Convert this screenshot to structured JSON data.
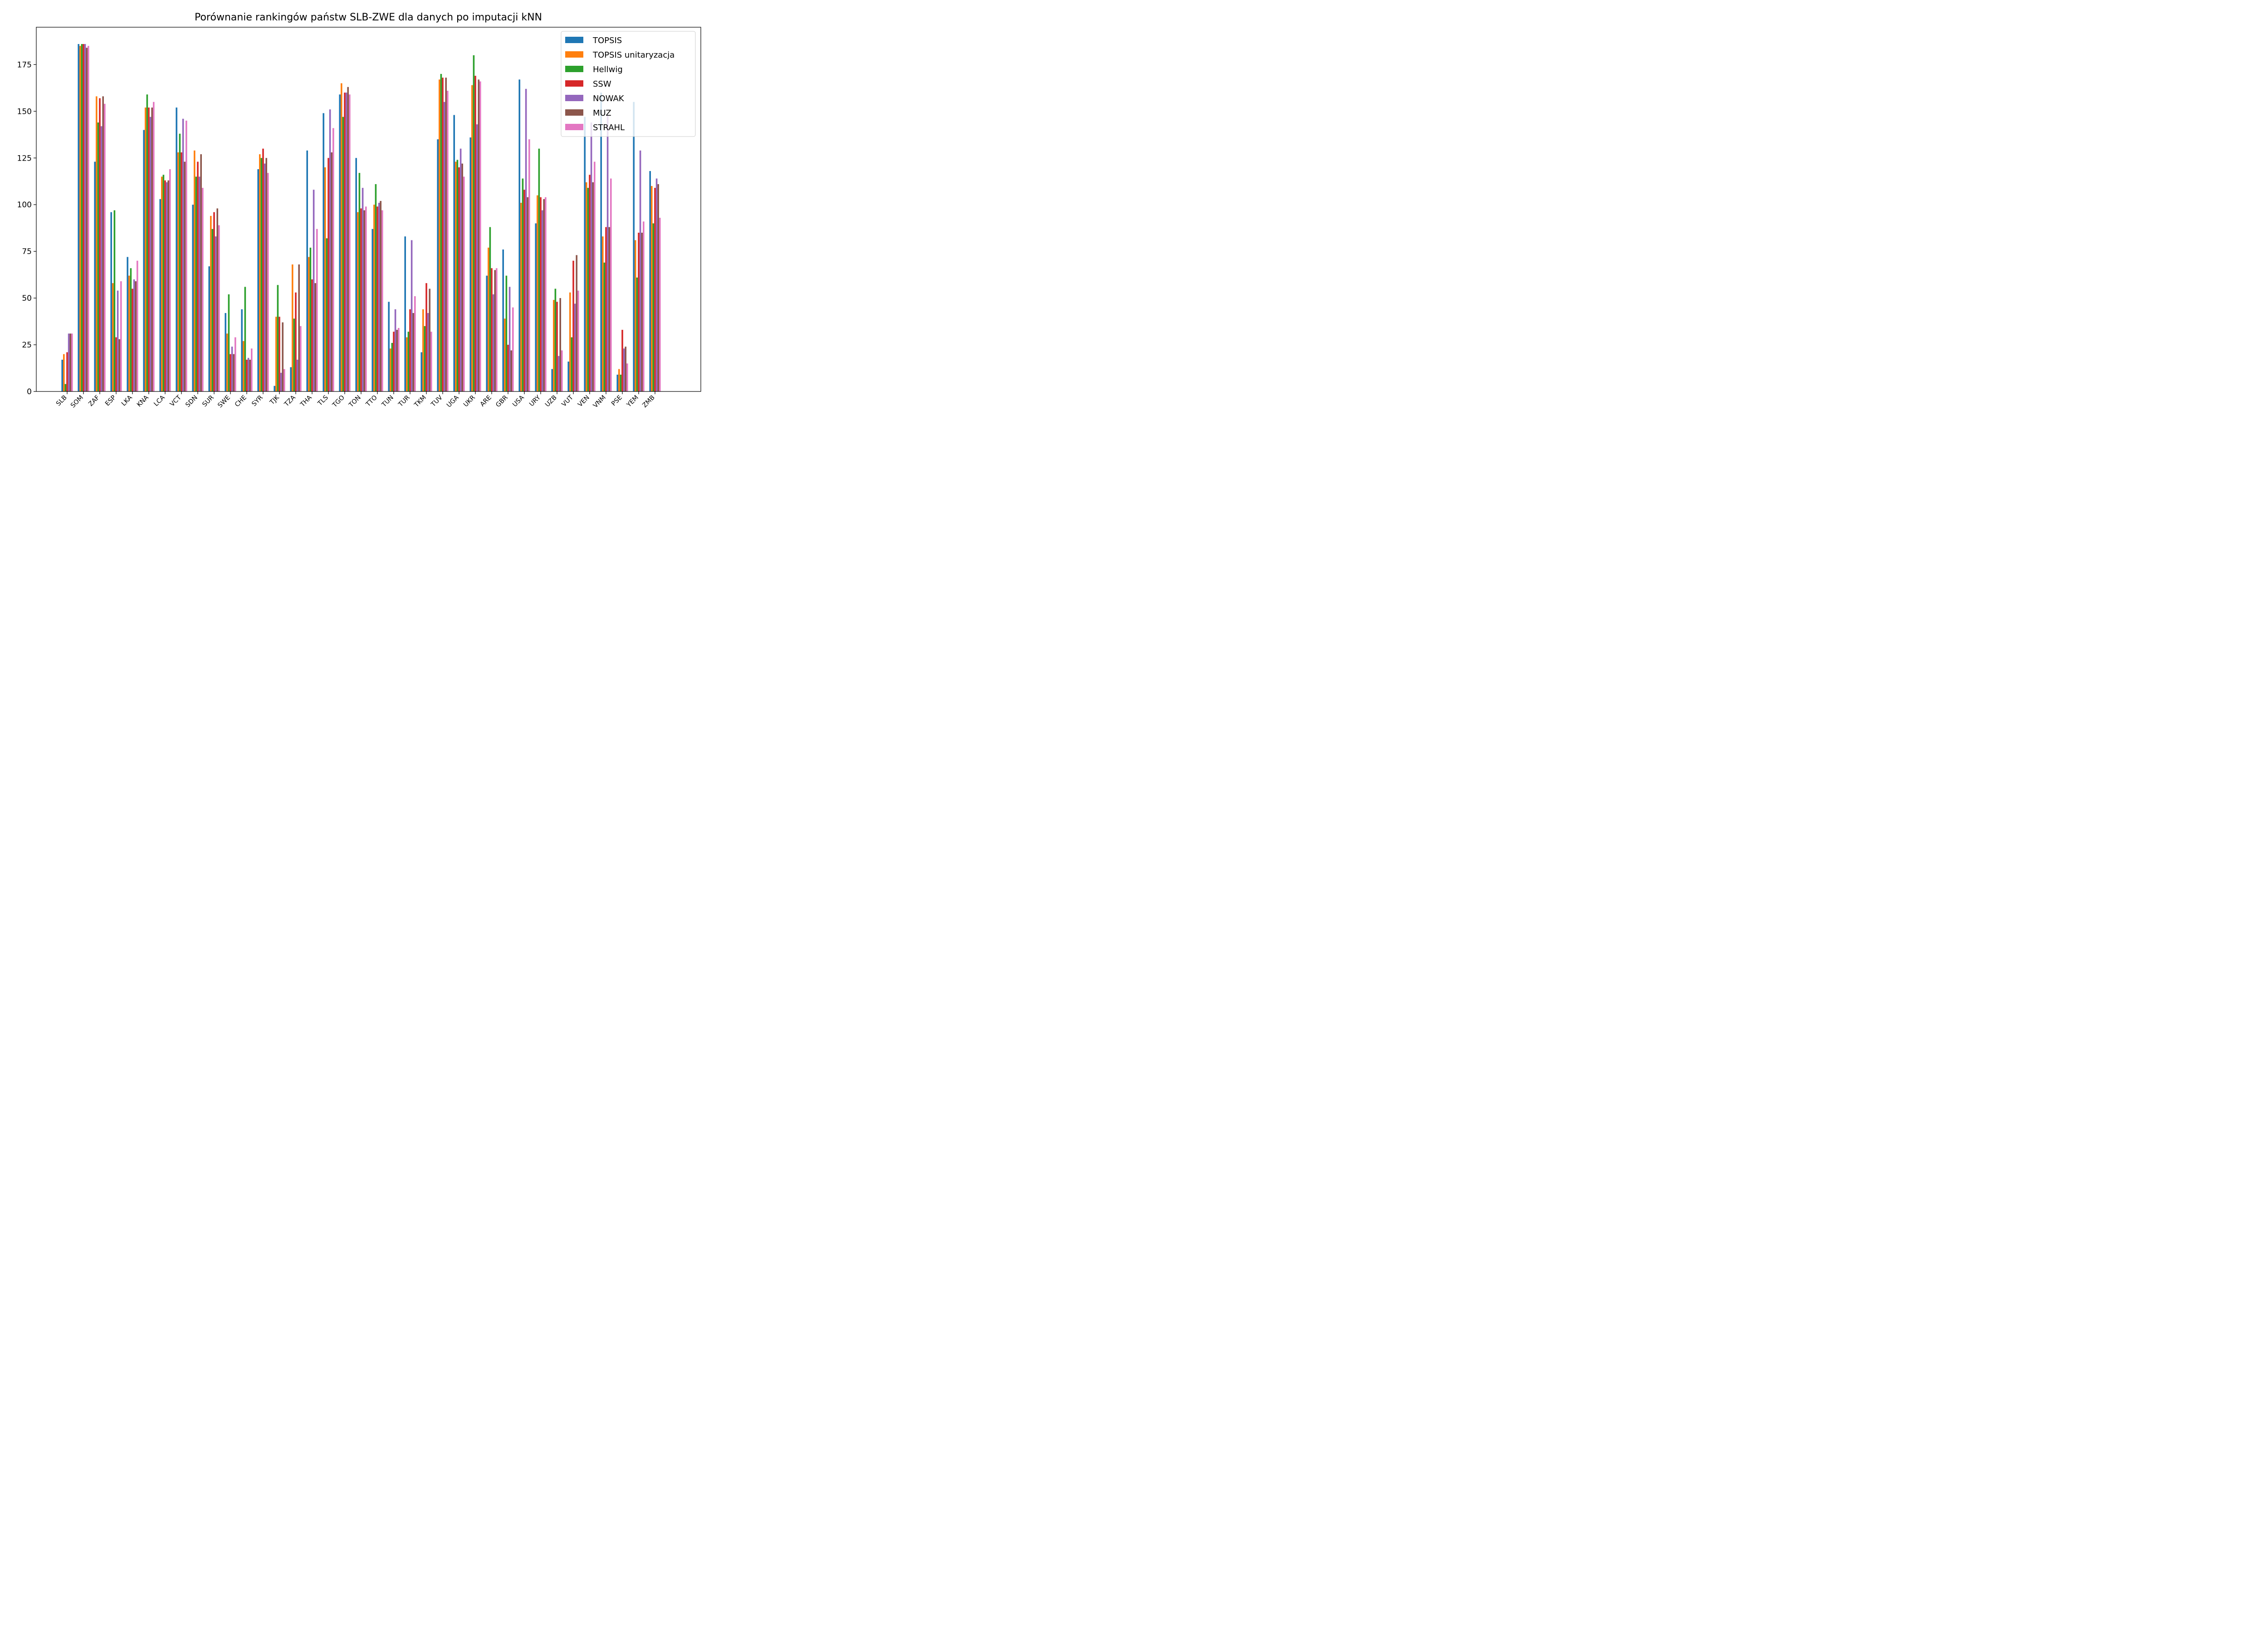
{
  "chart_data": {
    "type": "bar",
    "title": "Porównanie rankingów państw SLB-ZWE dla danych po imputacji kNN",
    "xlabel": "",
    "ylabel": "",
    "ylim": [
      0,
      195
    ],
    "yticks": [
      0,
      25,
      50,
      75,
      100,
      125,
      150,
      175
    ],
    "legend_position": "top-right",
    "grid": false,
    "categories": [
      "SLB",
      "SOM",
      "ZAF",
      "ESP",
      "LKA",
      "KNA",
      "LCA",
      "VCT",
      "SDN",
      "SUR",
      "SWE",
      "CHE",
      "SYR",
      "TJK",
      "TZA",
      "THA",
      "TLS",
      "TGO",
      "TON",
      "TTO",
      "TUN",
      "TUR",
      "TKM",
      "TUV",
      "UGA",
      "UKR",
      "ARE",
      "GBR",
      "USA",
      "URY",
      "UZB",
      "VUT",
      "VEN",
      "VNM",
      "PSE",
      "YEM",
      "ZMB"
    ],
    "series": [
      {
        "name": "TOPSIS",
        "color": "#1f77b4",
        "values": [
          17,
          186,
          123,
          96,
          72,
          140,
          103,
          152,
          100,
          67,
          42,
          44,
          119,
          3,
          13,
          129,
          149,
          159,
          125,
          87,
          48,
          83,
          21,
          135,
          148,
          136,
          62,
          76,
          167,
          90,
          12,
          16,
          147,
          160,
          9,
          155,
          118
        ]
      },
      {
        "name": "TOPSIS unitaryzacja",
        "color": "#ff7f0e",
        "values": [
          20,
          185,
          158,
          58,
          62,
          152,
          115,
          128,
          129,
          94,
          31,
          27,
          127,
          40,
          68,
          72,
          120,
          165,
          96,
          100,
          23,
          29,
          44,
          167,
          123,
          164,
          77,
          39,
          101,
          105,
          49,
          53,
          112,
          83,
          12,
          81,
          110
        ]
      },
      {
        "name": "Hellwig",
        "color": "#2ca02c",
        "values": [
          4,
          186,
          144,
          97,
          66,
          159,
          116,
          138,
          115,
          87,
          52,
          56,
          125,
          57,
          39,
          77,
          82,
          147,
          117,
          111,
          26,
          32,
          35,
          170,
          124,
          180,
          88,
          62,
          114,
          130,
          55,
          29,
          109,
          69,
          9,
          61,
          90
        ]
      },
      {
        "name": "SSW",
        "color": "#d62728",
        "values": [
          21,
          186,
          157,
          29,
          55,
          152,
          113,
          128,
          123,
          96,
          20,
          17,
          130,
          40,
          53,
          60,
          125,
          160,
          98,
          99,
          32,
          44,
          58,
          168,
          120,
          169,
          66,
          25,
          108,
          104,
          48,
          70,
          116,
          88,
          33,
          85,
          109
        ]
      },
      {
        "name": "NOWAK",
        "color": "#9467bd",
        "values": [
          31,
          186,
          142,
          54,
          60,
          147,
          112,
          146,
          115,
          83,
          24,
          18,
          122,
          10,
          17,
          108,
          151,
          160,
          109,
          101,
          44,
          81,
          42,
          155,
          130,
          143,
          52,
          56,
          162,
          97,
          19,
          47,
          144,
          148,
          23,
          129,
          114
        ]
      },
      {
        "name": "MUZ",
        "color": "#8c564b",
        "values": [
          31,
          184,
          158,
          28,
          59,
          152,
          113,
          123,
          127,
          98,
          20,
          17,
          125,
          37,
          68,
          58,
          128,
          163,
          97,
          102,
          33,
          42,
          55,
          168,
          122,
          167,
          65,
          22,
          104,
          103,
          50,
          73,
          112,
          88,
          24,
          85,
          111
        ]
      },
      {
        "name": "STRAHL",
        "color": "#e377c2",
        "values": [
          31,
          185,
          154,
          59,
          70,
          155,
          119,
          145,
          109,
          89,
          29,
          23,
          117,
          12,
          35,
          87,
          141,
          159,
          99,
          97,
          34,
          51,
          32,
          161,
          115,
          166,
          66,
          45,
          135,
          104,
          22,
          54,
          123,
          114,
          15,
          91,
          93
        ]
      }
    ]
  }
}
